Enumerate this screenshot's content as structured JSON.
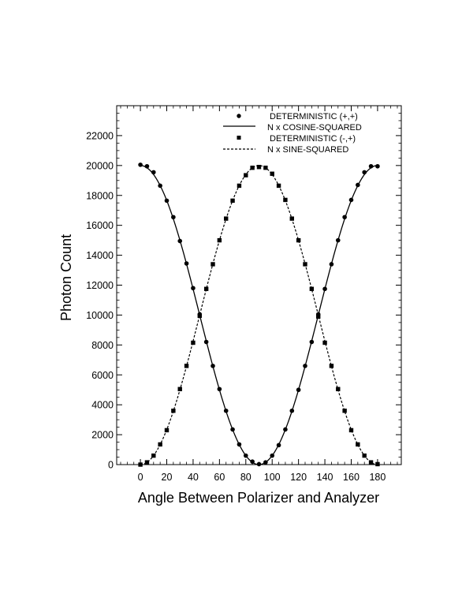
{
  "chart_data": {
    "type": "line",
    "title": "",
    "xlabel": "Angle Between Polarizer and Analyzer",
    "ylabel": "Photon Count",
    "xlim": [
      -18,
      198
    ],
    "ylim": [
      0,
      24000
    ],
    "xticks": [
      0,
      20,
      40,
      60,
      80,
      100,
      120,
      140,
      160,
      180
    ],
    "yticks": [
      0,
      2000,
      4000,
      6000,
      8000,
      10000,
      12000,
      14000,
      16000,
      18000,
      20000,
      22000
    ],
    "grid": false,
    "legend_position": "top-center",
    "N": 20000,
    "series": [
      {
        "name": "DETERMINISTIC (+,+)",
        "kind": "markers",
        "marker": "circle",
        "x": [
          0,
          5,
          10,
          15,
          20,
          25,
          30,
          35,
          40,
          45,
          50,
          55,
          60,
          65,
          70,
          75,
          80,
          85,
          90,
          95,
          100,
          105,
          110,
          115,
          120,
          125,
          130,
          135,
          140,
          145,
          150,
          155,
          160,
          165,
          170,
          175,
          180
        ],
        "y": [
          20050,
          19950,
          19550,
          18650,
          17650,
          16550,
          14950,
          13450,
          11800,
          10050,
          8200,
          6600,
          5050,
          3600,
          2350,
          1350,
          600,
          200,
          30,
          150,
          600,
          1300,
          2350,
          3600,
          5000,
          6600,
          8200,
          10050,
          11750,
          13400,
          15000,
          16550,
          17700,
          18700,
          19550,
          19950,
          19950
        ]
      },
      {
        "name": "N x COSINE-SQUARED",
        "kind": "line",
        "style": "solid",
        "function": "N*cos^2(x)"
      },
      {
        "name": "DETERMINISTIC (-,+)",
        "kind": "markers",
        "marker": "square",
        "x": [
          0,
          5,
          10,
          15,
          20,
          25,
          30,
          35,
          40,
          45,
          50,
          55,
          60,
          65,
          70,
          75,
          80,
          85,
          90,
          95,
          100,
          105,
          110,
          115,
          120,
          125,
          130,
          135,
          140,
          145,
          150,
          155,
          160,
          165,
          170,
          175,
          180
        ],
        "y": [
          0,
          150,
          600,
          1350,
          2300,
          3600,
          5050,
          6600,
          8150,
          9950,
          11750,
          13400,
          15000,
          16450,
          17650,
          18650,
          19350,
          19850,
          19900,
          19850,
          19450,
          18650,
          17700,
          16450,
          15000,
          13400,
          11750,
          9900,
          8150,
          6600,
          5050,
          3600,
          2300,
          1350,
          600,
          150,
          30
        ]
      },
      {
        "name": "N x SINE-SQUARED",
        "kind": "line",
        "style": "dashed",
        "function": "N*sin^2(x)"
      }
    ]
  }
}
